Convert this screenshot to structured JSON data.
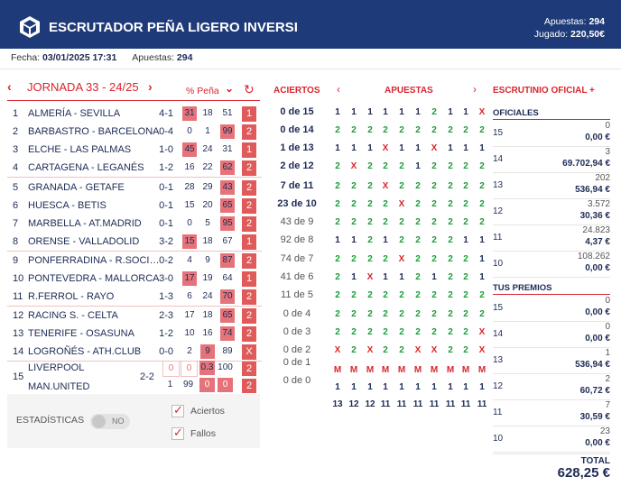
{
  "header": {
    "title": "ESCRUTADOR PEÑA LIGERO INVERSI",
    "apuestas_label": "Apuestas:",
    "apuestas_value": "294",
    "jugado_label": "Jugado:",
    "jugado_value": "220,50€"
  },
  "info": {
    "fecha_label": "Fecha:",
    "fecha_value": "03/01/2025 17:31",
    "apuestas_label": "Apuestas:",
    "apuestas_value": "294"
  },
  "jornada": {
    "label": "JORNADA 33 - 24/25",
    "pct_label": "% Peña",
    "aciertos_label": "ACIERTOS",
    "apuestas_label": "APUESTAS",
    "escrutinio_label": "ESCRUTINIO OFICIAL +"
  },
  "matches": [
    {
      "n": "1",
      "match": "ALMERÍA - SEVILLA",
      "res": "4-1",
      "p": [
        "31",
        "18",
        "51"
      ],
      "hi": [
        1,
        0,
        0
      ],
      "sign": "1",
      "ac": "0 de 15",
      "acb": true
    },
    {
      "n": "2",
      "match": "BARBASTRO - BARCELONA",
      "res": "0-4",
      "p": [
        "0",
        "1",
        "99"
      ],
      "hi": [
        0,
        0,
        1
      ],
      "sign": "2",
      "ac": "0 de 14",
      "acb": true
    },
    {
      "n": "3",
      "match": "ELCHE - LAS PALMAS",
      "res": "1-0",
      "p": [
        "45",
        "24",
        "31"
      ],
      "hi": [
        1,
        0,
        0
      ],
      "sign": "1",
      "ac": "1 de 13",
      "acb": true
    },
    {
      "n": "4",
      "match": "CARTAGENA - LEGANÉS",
      "res": "1-2",
      "p": [
        "16",
        "22",
        "62"
      ],
      "hi": [
        0,
        0,
        1
      ],
      "sign": "2",
      "ac": "2 de 12",
      "acb": true
    },
    {
      "n": "5",
      "match": "GRANADA - GETAFE",
      "res": "0-1",
      "p": [
        "28",
        "29",
        "43"
      ],
      "hi": [
        0,
        0,
        1
      ],
      "sign": "2",
      "ac": "7 de 11",
      "acb": true
    },
    {
      "n": "6",
      "match": "HUESCA - BETIS",
      "res": "0-1",
      "p": [
        "15",
        "20",
        "65"
      ],
      "hi": [
        0,
        0,
        1
      ],
      "sign": "2",
      "ac": "23 de 10",
      "acb": true
    },
    {
      "n": "7",
      "match": "MARBELLA - AT.MADRID",
      "res": "0-1",
      "p": [
        "0",
        "5",
        "95"
      ],
      "hi": [
        0,
        0,
        1
      ],
      "sign": "2",
      "ac": "43 de 9",
      "acb": false
    },
    {
      "n": "8",
      "match": "ORENSE - VALLADOLID",
      "res": "3-2",
      "p": [
        "15",
        "18",
        "67"
      ],
      "hi": [
        1,
        0,
        0
      ],
      "sign": "1",
      "ac": "92 de 8",
      "acb": false
    },
    {
      "n": "9",
      "match": "PONFERRADINA - R.SOCI…",
      "res": "0-2",
      "p": [
        "4",
        "9",
        "87"
      ],
      "hi": [
        0,
        0,
        1
      ],
      "sign": "2",
      "ac": "74 de 7",
      "acb": false
    },
    {
      "n": "10",
      "match": "PONTEVEDRA - MALLORCA",
      "res": "3-0",
      "p": [
        "17",
        "19",
        "64"
      ],
      "hi": [
        1,
        0,
        0
      ],
      "sign": "1",
      "ac": "41 de 6",
      "acb": false
    },
    {
      "n": "11",
      "match": "R.FERROL - RAYO",
      "res": "1-3",
      "p": [
        "6",
        "24",
        "70"
      ],
      "hi": [
        0,
        0,
        1
      ],
      "sign": "2",
      "ac": "11 de 5",
      "acb": false
    },
    {
      "n": "12",
      "match": "RACING S. - CELTA",
      "res": "2-3",
      "p": [
        "17",
        "18",
        "65"
      ],
      "hi": [
        0,
        0,
        1
      ],
      "sign": "2",
      "ac": "0 de 4",
      "acb": false
    },
    {
      "n": "13",
      "match": "TENERIFE - OSASUNA",
      "res": "1-2",
      "p": [
        "10",
        "16",
        "74"
      ],
      "hi": [
        0,
        0,
        1
      ],
      "sign": "2",
      "ac": "0 de 3",
      "acb": false
    },
    {
      "n": "14",
      "match": "LOGROÑÉS - ATH.CLUB",
      "res": "0-0",
      "p": [
        "2",
        "9",
        "89"
      ],
      "hi": [
        0,
        1,
        0
      ],
      "sign": "X",
      "ac": "0 de 2",
      "acb": false
    }
  ],
  "pleno": {
    "n": "15",
    "home": "LIVERPOOL",
    "away": "MAN.UNITED",
    "res": "2-2",
    "home_p": [
      "0",
      "0",
      "0.3",
      "100"
    ],
    "away_p": [
      "1",
      "99",
      "0",
      "0"
    ],
    "sign_home": "2",
    "sign_away": "2",
    "ac1": "0 de 1",
    "ac2": "0 de 0"
  },
  "bets": [
    [
      "1",
      "1",
      "1",
      "1",
      "1",
      "1",
      "2",
      "1",
      "1",
      "X"
    ],
    [
      "2",
      "2",
      "2",
      "2",
      "2",
      "2",
      "2",
      "2",
      "2",
      "2"
    ],
    [
      "1",
      "1",
      "1",
      "X",
      "1",
      "1",
      "X",
      "1",
      "1",
      "1"
    ],
    [
      "2",
      "X",
      "2",
      "2",
      "2",
      "1",
      "2",
      "2",
      "2",
      "2"
    ],
    [
      "2",
      "2",
      "2",
      "X",
      "2",
      "2",
      "2",
      "2",
      "2",
      "2"
    ],
    [
      "2",
      "2",
      "2",
      "2",
      "X",
      "2",
      "2",
      "2",
      "2",
      "2"
    ],
    [
      "2",
      "2",
      "2",
      "2",
      "2",
      "2",
      "2",
      "2",
      "2",
      "2"
    ],
    [
      "1",
      "1",
      "2",
      "1",
      "2",
      "2",
      "2",
      "2",
      "1",
      "1"
    ],
    [
      "2",
      "2",
      "2",
      "2",
      "X",
      "2",
      "2",
      "2",
      "2",
      "1"
    ],
    [
      "2",
      "1",
      "X",
      "1",
      "1",
      "2",
      "1",
      "2",
      "2",
      "1"
    ],
    [
      "2",
      "2",
      "2",
      "2",
      "2",
      "2",
      "2",
      "2",
      "2",
      "2"
    ],
    [
      "2",
      "2",
      "2",
      "2",
      "2",
      "2",
      "2",
      "2",
      "2",
      "2"
    ],
    [
      "2",
      "2",
      "2",
      "2",
      "2",
      "2",
      "2",
      "2",
      "2",
      "X"
    ],
    [
      "X",
      "2",
      "X",
      "2",
      "2",
      "X",
      "X",
      "2",
      "2",
      "X"
    ],
    [
      "M",
      "M",
      "M",
      "M",
      "M",
      "M",
      "M",
      "M",
      "M",
      "M"
    ],
    [
      "1",
      "1",
      "1",
      "1",
      "1",
      "1",
      "1",
      "1",
      "1",
      "1"
    ]
  ],
  "bet_totals": [
    "13",
    "12",
    "12",
    "11",
    "11",
    "11",
    "11",
    "11",
    "11",
    "11"
  ],
  "oficiales": {
    "label": "OFICIALES",
    "rows": [
      {
        "k": "15",
        "c": "0",
        "p": "0,00 €"
      },
      {
        "k": "14",
        "c": "3",
        "p": "69.702,94 €"
      },
      {
        "k": "13",
        "c": "202",
        "p": "536,94 €"
      },
      {
        "k": "12",
        "c": "3.572",
        "p": "30,36 €"
      },
      {
        "k": "11",
        "c": "24.823",
        "p": "4,37 €"
      },
      {
        "k": "10",
        "c": "108.262",
        "p": "0,00 €"
      }
    ]
  },
  "premios": {
    "label": "TUS PREMIOS",
    "rows": [
      {
        "k": "15",
        "c": "0",
        "p": "0,00 €"
      },
      {
        "k": "14",
        "c": "0",
        "p": "0,00 €"
      },
      {
        "k": "13",
        "c": "1",
        "p": "536,94 €"
      },
      {
        "k": "12",
        "c": "2",
        "p": "60,72 €"
      },
      {
        "k": "11",
        "c": "7",
        "p": "30,59 €"
      },
      {
        "k": "10",
        "c": "23",
        "p": "0,00 €"
      }
    ]
  },
  "total": {
    "label": "TOTAL",
    "value": "628,25 €"
  },
  "stats": {
    "label": "ESTADÍSTICAS",
    "toggle": "NO",
    "aciertos": "Aciertos",
    "fallos": "Fallos"
  }
}
